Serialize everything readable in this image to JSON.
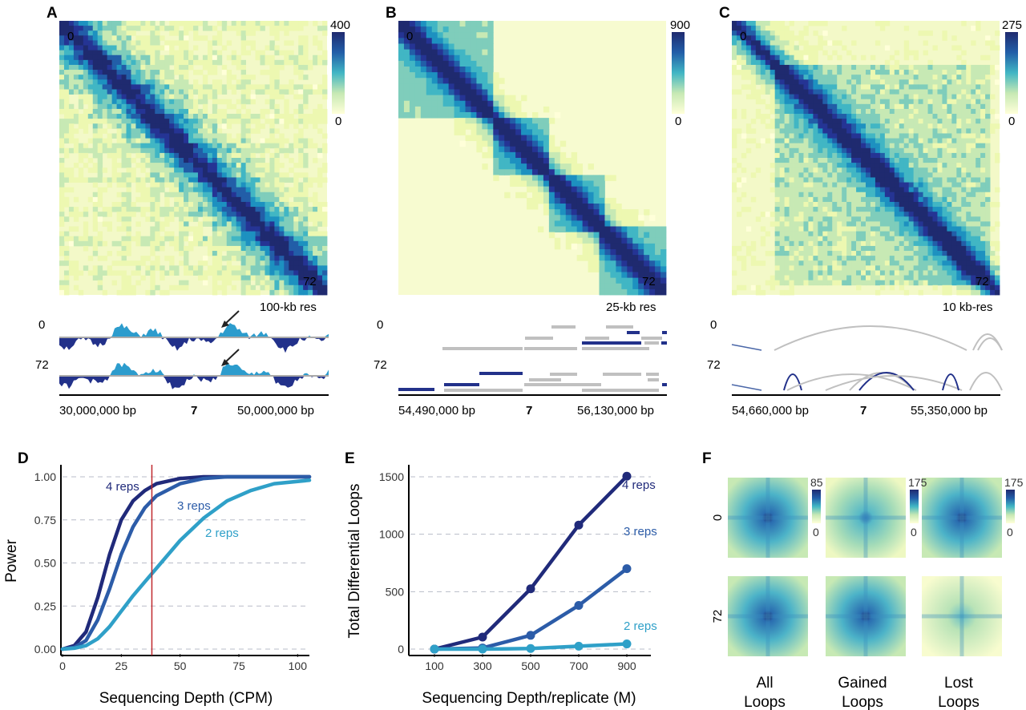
{
  "panels": {
    "A": {
      "letter": "A",
      "heatmap": {
        "corner_top": "0",
        "corner_bottom": "72",
        "scale_max": "400",
        "scale_min": "0"
      },
      "resolution": "100-kb res",
      "track_label_0": "0",
      "track_label_72": "72",
      "axis_left": "30,000,000 bp",
      "axis_chr": "7",
      "axis_right": "50,000,000 bp"
    },
    "B": {
      "letter": "B",
      "heatmap": {
        "corner_top": "0",
        "corner_bottom": "72",
        "scale_max": "900",
        "scale_min": "0"
      },
      "resolution": "25-kb res",
      "track_label_0": "0",
      "track_label_72": "72",
      "axis_left": "54,490,000 bp",
      "axis_chr": "7",
      "axis_right": "56,130,000 bp"
    },
    "C": {
      "letter": "C",
      "heatmap": {
        "corner_top": "0",
        "corner_bottom": "72",
        "scale_max": "275",
        "scale_min": "0"
      },
      "resolution": "10 kb-res",
      "track_label_0": "0",
      "track_label_72": "72",
      "axis_left": "54,660,000 bp",
      "axis_chr": "7",
      "axis_right": "55,350,000 bp"
    },
    "F": {
      "letter": "F",
      "row_labels": [
        "0",
        "72"
      ],
      "columns": [
        "All\nLoops",
        "Gained\nLoops",
        "Lost\nLoops"
      ],
      "col_label_lines": [
        [
          "All",
          "Loops"
        ],
        [
          "Gained",
          "Loops"
        ],
        [
          "Lost",
          "Loops"
        ]
      ],
      "scales": [
        {
          "max": "85",
          "min": "0"
        },
        {
          "max": "175",
          "min": "0"
        },
        {
          "max": "175",
          "min": "0"
        }
      ]
    }
  },
  "colors": {
    "dark": "#202a7a",
    "mid": "#2c5ca8",
    "light": "#2fa0c8",
    "red_line": "#c0282d",
    "grid": "#b8bcc8",
    "ramp": [
      "#ffffd9",
      "#edf8b1",
      "#c7e9b4",
      "#7fcdbb",
      "#41b6c4",
      "#1d91c0",
      "#225ea8",
      "#253494",
      "#1f2a6f"
    ]
  },
  "chart_data": [
    {
      "id": "D",
      "letter": "D",
      "type": "line",
      "xlabel": "Sequencing Depth (CPM)",
      "ylabel": "Power",
      "xlim": [
        0,
        105
      ],
      "ylim": [
        0,
        1
      ],
      "xticks": [
        0,
        25,
        50,
        75,
        100
      ],
      "yticks": [
        "0.00",
        "0.25",
        "0.50",
        "0.75",
        "1.00"
      ],
      "grid": "horizontal dashed",
      "vline_x": 38,
      "series": [
        {
          "name": "4 reps",
          "x": [
            0,
            5,
            10,
            15,
            20,
            25,
            30,
            35,
            40,
            50,
            60,
            70,
            80,
            105
          ],
          "y": [
            0,
            0.02,
            0.1,
            0.3,
            0.55,
            0.75,
            0.86,
            0.92,
            0.96,
            0.99,
            1.0,
            1.0,
            1.0,
            1.0
          ]
        },
        {
          "name": "3 reps",
          "x": [
            0,
            5,
            10,
            15,
            20,
            25,
            30,
            35,
            40,
            50,
            60,
            70,
            80,
            105
          ],
          "y": [
            0,
            0.01,
            0.05,
            0.17,
            0.35,
            0.55,
            0.71,
            0.82,
            0.89,
            0.96,
            0.99,
            1.0,
            1.0,
            1.0
          ]
        },
        {
          "name": "2 reps",
          "x": [
            0,
            5,
            10,
            15,
            20,
            25,
            30,
            35,
            40,
            50,
            60,
            70,
            80,
            90,
            105
          ],
          "y": [
            0,
            0.005,
            0.02,
            0.06,
            0.13,
            0.22,
            0.31,
            0.39,
            0.47,
            0.63,
            0.76,
            0.86,
            0.92,
            0.96,
            0.98
          ]
        }
      ]
    },
    {
      "id": "E",
      "letter": "E",
      "type": "line",
      "xlabel": "Sequencing Depth/replicate (M)",
      "ylabel": "Total Differential Loops",
      "xlim": [
        0,
        1000
      ],
      "ylim": [
        0,
        1500
      ],
      "x": [
        100,
        300,
        500,
        700,
        900
      ],
      "yticks": [
        0,
        500,
        1000,
        1500
      ],
      "grid": "horizontal dashed",
      "series": [
        {
          "name": "4 reps",
          "values": [
            0,
            105,
            525,
            1080,
            1505
          ]
        },
        {
          "name": "3 reps",
          "values": [
            0,
            10,
            120,
            380,
            700
          ]
        },
        {
          "name": "2 reps",
          "values": [
            0,
            0,
            5,
            25,
            45
          ]
        }
      ]
    }
  ]
}
